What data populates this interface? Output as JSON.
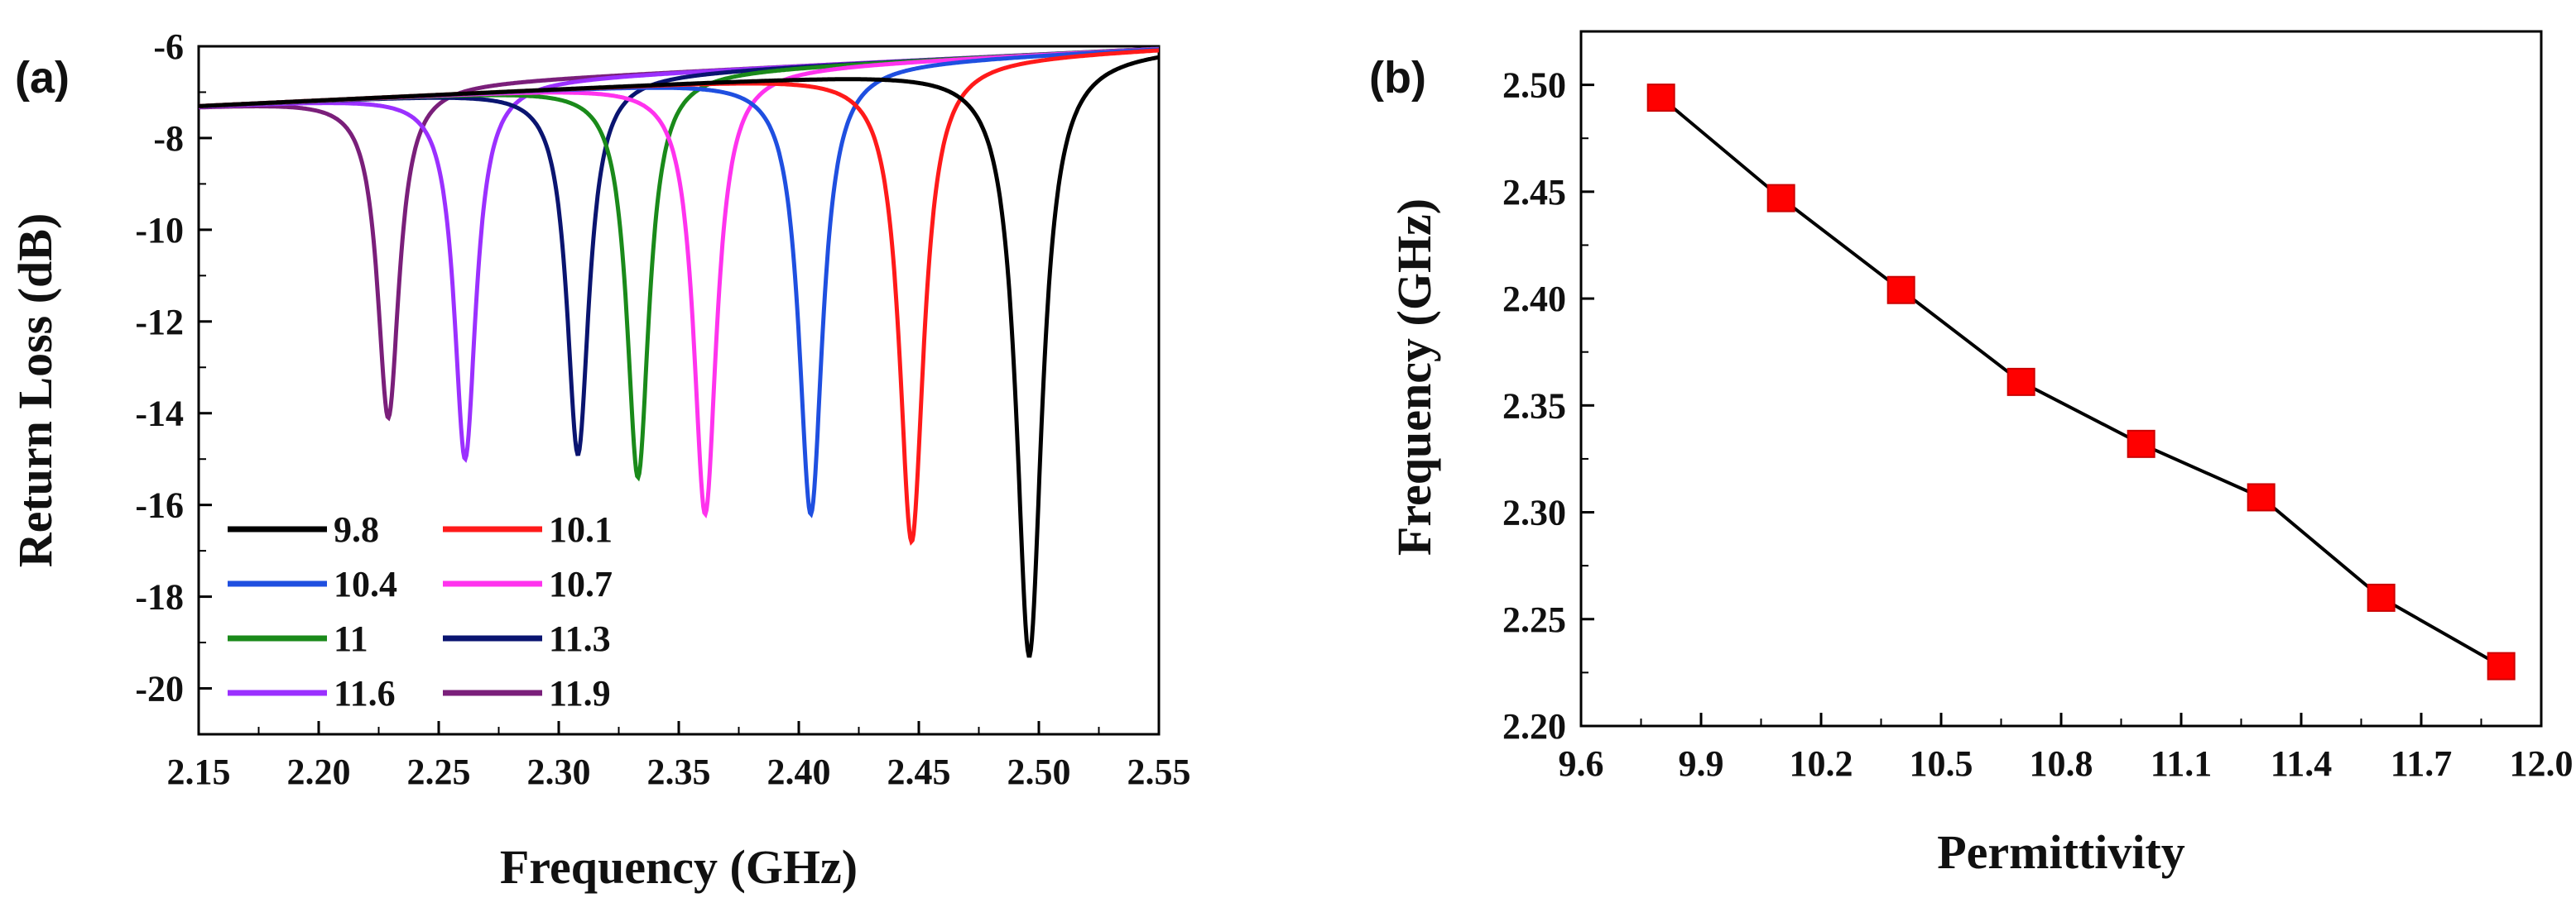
{
  "chart_data": [
    {
      "type": "line",
      "panel_label": "(a)",
      "title": "",
      "xlabel": "Frequency (GHz)",
      "ylabel": "Return Loss (dB)",
      "xlim": [
        2.15,
        2.55
      ],
      "ylim": [
        -21,
        -6
      ],
      "x_ticks": [
        "2.15",
        "2.20",
        "2.25",
        "2.30",
        "2.35",
        "2.40",
        "2.45",
        "2.50",
        "2.55"
      ],
      "x_tick_values": [
        2.15,
        2.2,
        2.25,
        2.3,
        2.35,
        2.4,
        2.45,
        2.5,
        2.55
      ],
      "y_ticks": [
        "-6",
        "-8",
        "-10",
        "-12",
        "-14",
        "-16",
        "-18",
        "-20"
      ],
      "y_tick_values": [
        -6,
        -8,
        -10,
        -12,
        -14,
        -16,
        -18,
        -20
      ],
      "grid": false,
      "legend_position": "bottom-left",
      "series": [
        {
          "name": "9.8",
          "color": "#000000",
          "f0": 2.496,
          "min": -19.3,
          "bw": 0.0065
        },
        {
          "name": "10.1",
          "color": "#ff1a1a",
          "f0": 2.447,
          "min": -16.8,
          "bw": 0.0062
        },
        {
          "name": "10.4",
          "color": "#1f4fe0",
          "f0": 2.405,
          "min": -16.2,
          "bw": 0.006
        },
        {
          "name": "10.7",
          "color": "#ff33ee",
          "f0": 2.361,
          "min": -16.2,
          "bw": 0.0058
        },
        {
          "name": "11",
          "color": "#1a8a1a",
          "f0": 2.333,
          "min": -15.4,
          "bw": 0.0056
        },
        {
          "name": "11.3",
          "color": "#0a1470",
          "f0": 2.308,
          "min": -14.9,
          "bw": 0.0056
        },
        {
          "name": "11.6",
          "color": "#9b30ff",
          "f0": 2.261,
          "min": -15.0,
          "bw": 0.0055
        },
        {
          "name": "11.9",
          "color": "#7a1f7a",
          "f0": 2.229,
          "min": -14.1,
          "bw": 0.0055
        }
      ],
      "baseline": {
        "x_start": 2.15,
        "y_start": -7.3,
        "x_end": 2.55,
        "y_end": -6.3
      }
    },
    {
      "type": "line",
      "panel_label": "(b)",
      "title": "",
      "xlabel": "Permittivity",
      "ylabel": "Frequency (GHz)",
      "xlim": [
        9.6,
        12.0
      ],
      "ylim": [
        2.2,
        2.525
      ],
      "x_ticks": [
        "9.6",
        "9.9",
        "10.2",
        "10.5",
        "10.8",
        "11.1",
        "11.4",
        "11.7",
        "12.0"
      ],
      "x_tick_values": [
        9.6,
        9.9,
        10.2,
        10.5,
        10.8,
        11.1,
        11.4,
        11.7,
        12.0
      ],
      "y_ticks": [
        "2.20",
        "2.25",
        "2.30",
        "2.35",
        "2.40",
        "2.45",
        "2.50"
      ],
      "y_tick_values": [
        2.2,
        2.25,
        2.3,
        2.35,
        2.4,
        2.45,
        2.5
      ],
      "grid": false,
      "marker": "square",
      "marker_color": "#ff0000",
      "line_color": "#000000",
      "x": [
        9.8,
        10.1,
        10.4,
        10.7,
        11.0,
        11.3,
        11.6,
        11.9
      ],
      "y": [
        2.494,
        2.447,
        2.404,
        2.361,
        2.332,
        2.307,
        2.26,
        2.228
      ]
    }
  ]
}
